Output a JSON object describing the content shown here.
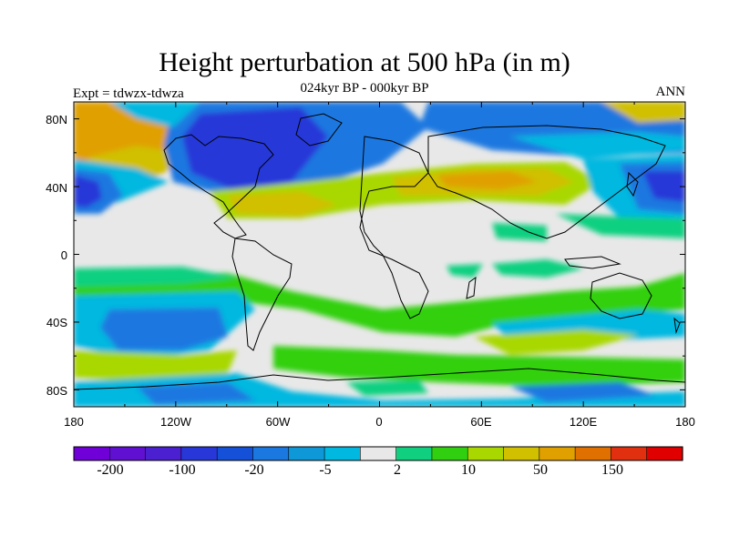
{
  "title": "Height perturbation at 500 hPa (in m)",
  "subtitle": "024kyr BP - 000kyr BP",
  "left_label": "Expt = tdwzx-tdwza",
  "right_label": "ANN",
  "lat_ticks": [
    "80N",
    "40N",
    "0",
    "40S",
    "80S"
  ],
  "lon_ticks": [
    "180",
    "120W",
    "60W",
    "0",
    "60E",
    "120E",
    "180"
  ],
  "colorbar": {
    "labels": [
      "-200",
      "-100",
      "-20",
      "-5",
      "2",
      "10",
      "50",
      "150"
    ],
    "colors": [
      "#7000d8",
      "#6010d0",
      "#4a20d0",
      "#2838d8",
      "#1550d8",
      "#1a78e0",
      "#0f98d8",
      "#00b8e0",
      "#e8e8e8",
      "#10d080",
      "#30d010",
      "#a8d800",
      "#d0c000",
      "#e0a000",
      "#e07000",
      "#e03010",
      "#e00000"
    ]
  },
  "palette": {
    "neutral": "#e8e8e8",
    "blue_dark": "#2838d8",
    "blue": "#1a78e0",
    "cyan": "#00b8e0",
    "green": "#10d080",
    "lime": "#30d010",
    "yellow": "#a8d800",
    "gold": "#d0c000",
    "orange": "#e0a000",
    "coast": "#000000"
  }
}
